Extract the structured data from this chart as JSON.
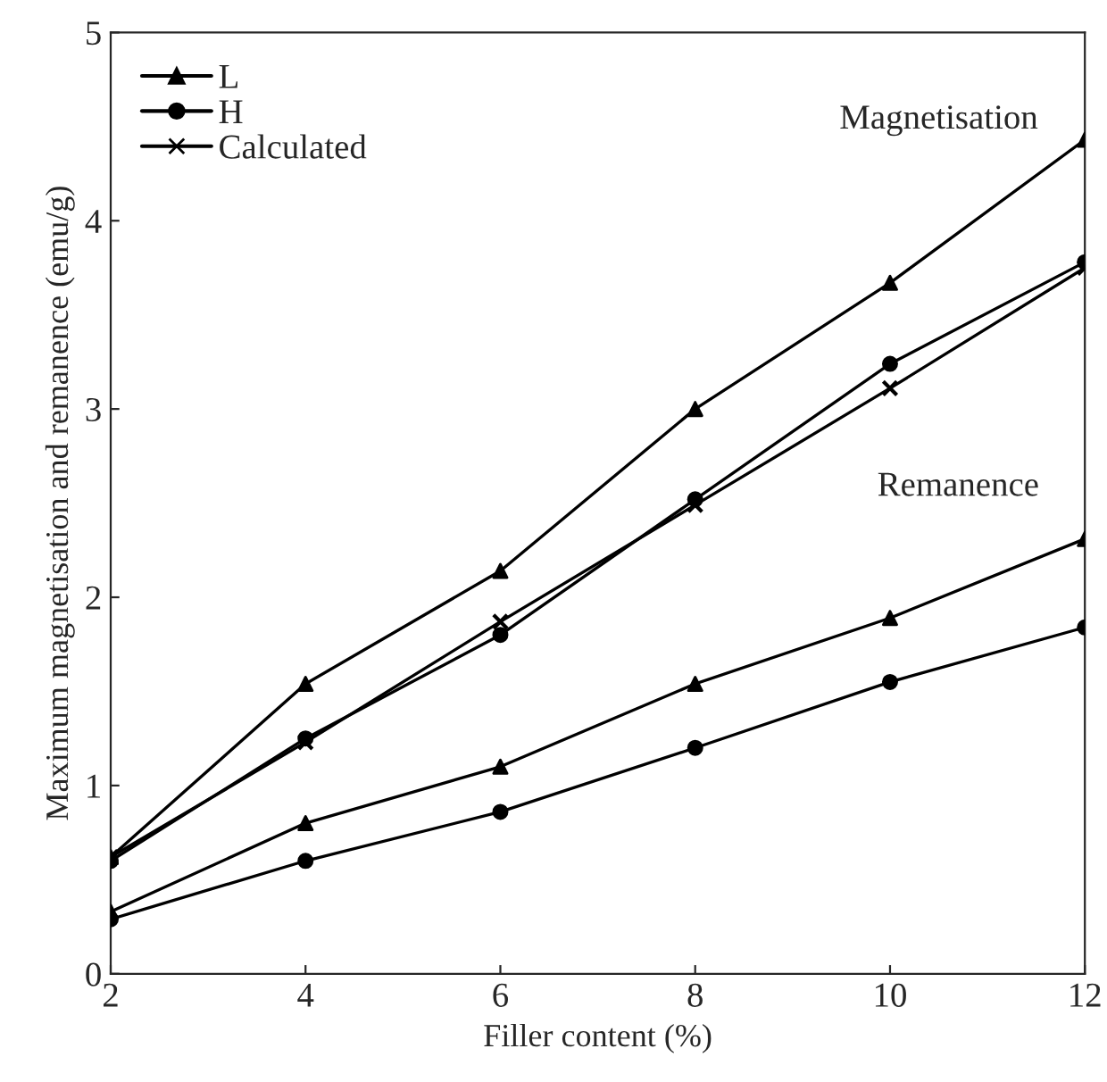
{
  "chart_data": {
    "type": "line",
    "xlabel": "Filler content (%)",
    "ylabel": "Maximum magnetisation and remanence (emu/g)",
    "x": [
      2,
      4,
      6,
      8,
      10,
      12
    ],
    "series": [
      {
        "name": "L",
        "color": "#000000",
        "marker": "triangle",
        "values": [
          0.62,
          1.54,
          2.14,
          3.0,
          3.67,
          4.43
        ]
      },
      {
        "name": "H",
        "color": "#000000",
        "marker": "circle",
        "values": [
          0.6,
          1.25,
          1.8,
          2.52,
          3.24,
          3.78
        ]
      },
      {
        "name": "Calculated",
        "color": "#000000",
        "marker": "cross",
        "values": [
          0.62,
          1.23,
          1.87,
          2.49,
          3.11,
          3.75
        ]
      },
      {
        "color": "#000000",
        "marker": "triangle",
        "values": [
          0.33,
          0.8,
          1.1,
          1.54,
          1.89,
          2.31
        ]
      },
      {
        "color": "#000000",
        "marker": "circle",
        "values": [
          0.29,
          0.6,
          0.86,
          1.2,
          1.55,
          1.84
        ]
      }
    ],
    "annotations": [
      "Magnetisation",
      "Remanence"
    ],
    "xlim": [
      2,
      12
    ],
    "xticks": [
      2,
      4,
      6,
      8,
      10,
      12
    ],
    "ylim": [
      0,
      5
    ],
    "yticks": [
      0,
      1,
      2,
      3,
      4,
      5
    ],
    "grid": false,
    "legend": "top left",
    "line_style": "solid"
  }
}
